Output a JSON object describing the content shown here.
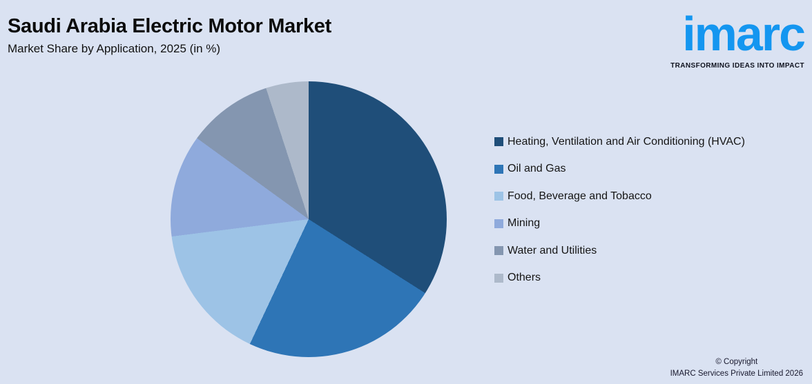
{
  "header": {
    "title": "Saudi Arabia Electric Motor Market",
    "subtitle": "Market Share by Application, 2025 (in %)"
  },
  "logo": {
    "wordmark": "imarc",
    "tagline": "TRANSFORMING IDEAS INTO IMPACT",
    "brand_color": "#1496F0"
  },
  "chart_data": {
    "type": "pie",
    "title": "Saudi Arabia Electric Motor Market",
    "subtitle": "Market Share by Application, 2025 (in %)",
    "unit": "percent",
    "start_angle_deg": 0,
    "direction": "clockwise",
    "legend_position": "right",
    "data_labels_shown": false,
    "background_color": "#DAE2F2",
    "slices": [
      {
        "label": "Heating, Ventilation and Air Conditioning (HVAC)",
        "value": 34,
        "color": "#1F4E79"
      },
      {
        "label": "Oil and Gas",
        "value": 23,
        "color": "#2E75B6"
      },
      {
        "label": "Food, Beverage and Tobacco",
        "value": 16,
        "color": "#9DC3E6"
      },
      {
        "label": "Mining",
        "value": 12,
        "color": "#8FAADC"
      },
      {
        "label": "Water and Utilities",
        "value": 10,
        "color": "#8496B0"
      },
      {
        "label": "Others",
        "value": 5,
        "color": "#ADB9CA"
      }
    ]
  },
  "footer": {
    "copyright_line1": "© Copyright",
    "copyright_line2": "IMARC Services Private Limited 2026"
  }
}
